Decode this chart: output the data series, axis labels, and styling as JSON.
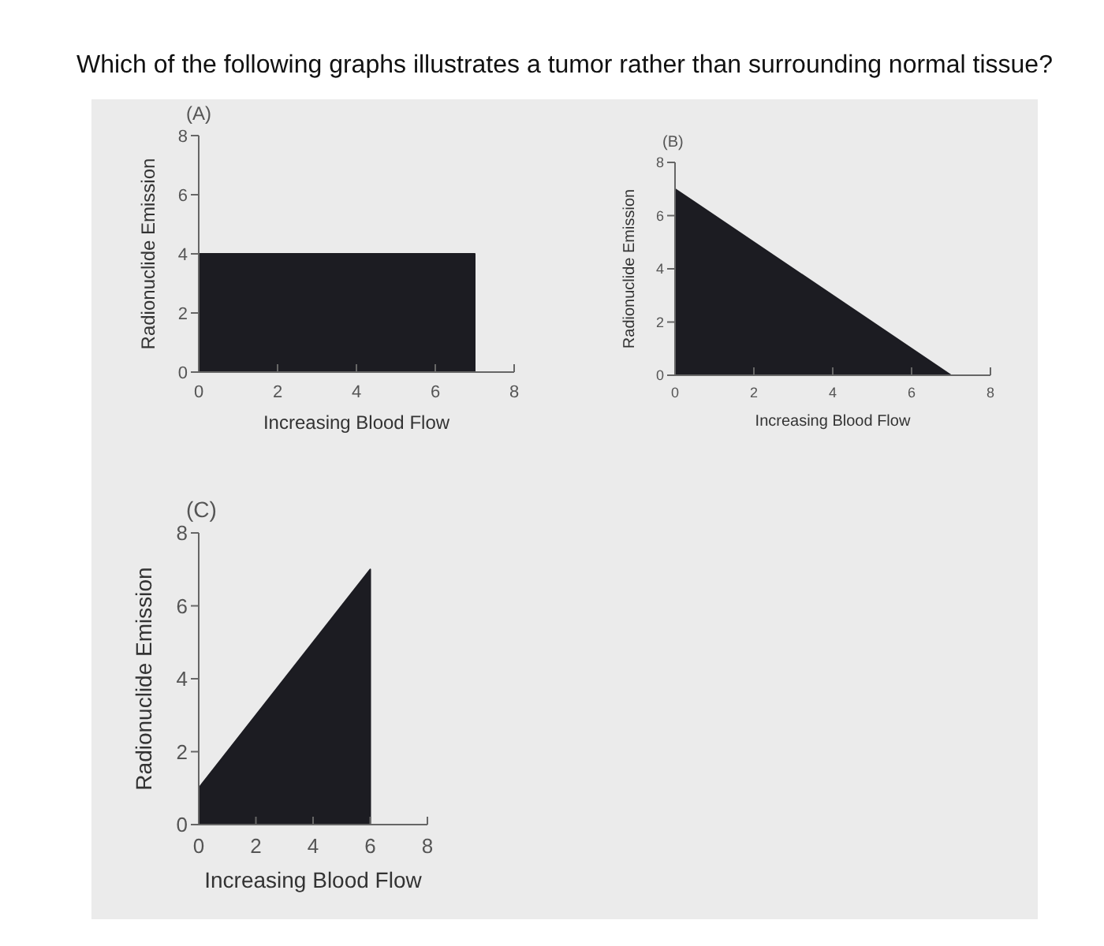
{
  "chart_data": [
    {
      "type": "other",
      "title": "Which of the following graphs illustrates a tumor rather than surrounding normal tissue?"
    },
    {
      "type": "area",
      "title": "(A)",
      "xlabel": "Increasing Blood Flow",
      "ylabel": "Radionuclide Emission",
      "x": [
        0,
        7
      ],
      "series": [
        {
          "color": "#1c1c22",
          "values": [
            4,
            4
          ]
        }
      ],
      "xlim": [
        0,
        8
      ],
      "ylim": [
        0,
        8
      ],
      "xticks": [
        0,
        2,
        4,
        6,
        8
      ],
      "yticks": [
        0,
        2,
        4,
        6,
        8
      ]
    },
    {
      "type": "area",
      "title": "(B)",
      "xlabel": "Increasing Blood Flow",
      "ylabel": "Radionuclide Emission",
      "x": [
        0,
        7
      ],
      "series": [
        {
          "color": "#1c1c22",
          "values": [
            7,
            0
          ]
        }
      ],
      "xlim": [
        0,
        8
      ],
      "ylim": [
        0,
        8
      ],
      "xticks": [
        0,
        2,
        4,
        6,
        8
      ],
      "yticks": [
        0,
        2,
        4,
        6,
        8
      ]
    },
    {
      "type": "area",
      "title": "(C)",
      "xlabel": "Increasing Blood Flow",
      "ylabel": "Radionuclide Emission",
      "x": [
        0,
        6
      ],
      "series": [
        {
          "color": "#1c1c22",
          "values": [
            1,
            7
          ]
        }
      ],
      "xlim": [
        0,
        8
      ],
      "ylim": [
        0,
        8
      ],
      "xticks": [
        0,
        2,
        4,
        6,
        8
      ],
      "yticks": [
        0,
        2,
        4,
        6,
        8
      ]
    }
  ]
}
